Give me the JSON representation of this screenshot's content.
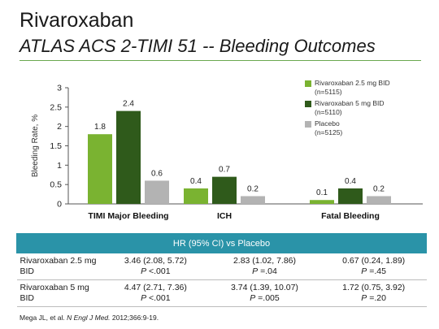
{
  "slide": {
    "title": "Rivaroxaban",
    "subtitle": "ATLAS ACS 2-TIMI 51 -- Bleeding Outcomes"
  },
  "colors": {
    "riva25": "#7ab331",
    "riva5": "#2f5a1b",
    "placebo": "#b3b3b3",
    "table_header": "#2a93a8",
    "rule": "#6aa84f"
  },
  "chart_data": {
    "type": "bar",
    "ylabel": "Bleeding Rate, %",
    "ylim": [
      0,
      3
    ],
    "yticks": [
      "0",
      "0.5",
      "1",
      "1.5",
      "2",
      "2.5",
      "3"
    ],
    "grid": false,
    "legend_position": "top-right",
    "categories": [
      "TIMI Major Bleeding",
      "ICH",
      "Fatal Bleeding"
    ],
    "series": [
      {
        "name": "Rivaroxaban 2.5 mg BID",
        "n": "(n=5115)",
        "values": [
          1.8,
          0.4,
          0.1
        ],
        "labels": [
          "1.8",
          "0.4",
          "0.1"
        ]
      },
      {
        "name": "Rivaroxaban 5 mg BID",
        "n": "(n=5110)",
        "values": [
          2.4,
          0.7,
          0.4
        ],
        "labels": [
          "2.4",
          "0.7",
          "0.4"
        ]
      },
      {
        "name": "Placebo",
        "n": "(n=5125)",
        "values": [
          0.6,
          0.2,
          0.2
        ],
        "labels": [
          "0.6",
          "0.2",
          "0.2"
        ]
      }
    ]
  },
  "table": {
    "header": "HR (95% CI) vs Placebo",
    "rows": [
      {
        "label_line1": "Rivaroxaban 2.5 mg",
        "label_line2": "BID",
        "cells": [
          {
            "hr": "3.46 (2.08, 5.72)",
            "p_label": "P",
            "p_value": " <.001"
          },
          {
            "hr": "2.83 (1.02, 7.86)",
            "p_label": "P",
            "p_value": " =.04"
          },
          {
            "hr": "0.67 (0.24, 1.89)",
            "p_label": "P",
            "p_value": " =.45"
          }
        ]
      },
      {
        "label_line1": "Rivaroxaban 5 mg",
        "label_line2": "BID",
        "cells": [
          {
            "hr": "4.47 (2.71, 7.36)",
            "p_label": "P",
            "p_value": " <.001"
          },
          {
            "hr": "3.74 (1.39, 10.07)",
            "p_label": "P",
            "p_value": " =.005"
          },
          {
            "hr": "1.72 (0.75, 3.92)",
            "p_label": "P",
            "p_value": " =.20"
          }
        ]
      }
    ]
  },
  "reference": {
    "authors": "Mega JL, et al. ",
    "journal": "N Engl J Med.",
    "citation": " 2012;366:9-19."
  }
}
